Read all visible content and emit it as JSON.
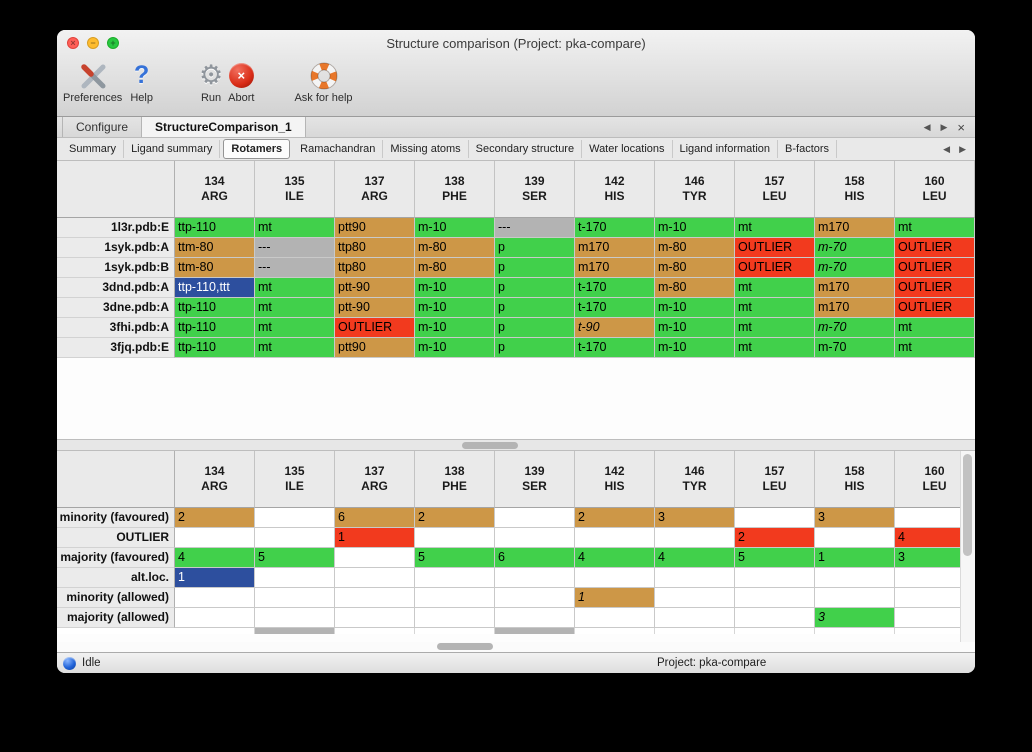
{
  "window": {
    "title": "Structure comparison (Project: pka-compare)",
    "traffic": {
      "close": "×",
      "minimize": "−",
      "zoom": "+"
    }
  },
  "toolbar": [
    {
      "label": "Preferences"
    },
    {
      "label": "Help",
      "glyph": "?"
    },
    {
      "label": "Run",
      "glyph": "⚙"
    },
    {
      "label": "Abort",
      "glyph": "×"
    },
    {
      "label": "Ask for help"
    }
  ],
  "primary_tabs": {
    "tabs": [
      {
        "label": "Configure",
        "active": false
      },
      {
        "label": "StructureComparison_1",
        "active": true
      }
    ],
    "controls": {
      "back": "◀",
      "forward": "▶",
      "close": "×"
    }
  },
  "secondary_tabs": {
    "tabs": [
      {
        "label": "Summary"
      },
      {
        "label": "Ligand summary"
      },
      {
        "label": "Rotamers",
        "active": true
      },
      {
        "label": "Ramachandran"
      },
      {
        "label": "Missing atoms"
      },
      {
        "label": "Secondary structure"
      },
      {
        "label": "Water locations"
      },
      {
        "label": "Ligand information"
      },
      {
        "label": "B-factors"
      }
    ],
    "controls": {
      "back": "◀",
      "forward": "▶"
    }
  },
  "columns": [
    {
      "num": "134",
      "res": "ARG"
    },
    {
      "num": "135",
      "res": "ILE"
    },
    {
      "num": "137",
      "res": "ARG"
    },
    {
      "num": "138",
      "res": "PHE"
    },
    {
      "num": "139",
      "res": "SER"
    },
    {
      "num": "142",
      "res": "HIS"
    },
    {
      "num": "146",
      "res": "TYR"
    },
    {
      "num": "157",
      "res": "LEU"
    },
    {
      "num": "158",
      "res": "HIS"
    },
    {
      "num": "160",
      "res": "LEU"
    }
  ],
  "colors": {
    "green": "#41d04b",
    "tan": "#cd9747",
    "red": "#f23a1e",
    "gray": "#b3b3b3",
    "blue": "#2d4f9e"
  },
  "structures_table": {
    "rows": [
      {
        "label": "1l3r.pdb:E",
        "cells": [
          {
            "t": "ttp-110",
            "c": "green"
          },
          {
            "t": "mt",
            "c": "green"
          },
          {
            "t": "ptt90",
            "c": "tan"
          },
          {
            "t": "m-10",
            "c": "green"
          },
          {
            "t": "---",
            "c": "gray"
          },
          {
            "t": "t-170",
            "c": "green"
          },
          {
            "t": "m-10",
            "c": "green"
          },
          {
            "t": "mt",
            "c": "green"
          },
          {
            "t": "m170",
            "c": "tan"
          },
          {
            "t": "mt",
            "c": "green"
          }
        ]
      },
      {
        "label": "1syk.pdb:A",
        "cells": [
          {
            "t": "ttm-80",
            "c": "tan"
          },
          {
            "t": "---",
            "c": "gray"
          },
          {
            "t": "ttp80",
            "c": "tan"
          },
          {
            "t": "m-80",
            "c": "tan"
          },
          {
            "t": "p",
            "c": "green"
          },
          {
            "t": "m170",
            "c": "tan"
          },
          {
            "t": "m-80",
            "c": "tan"
          },
          {
            "t": "OUTLIER",
            "c": "red"
          },
          {
            "t": "m-70",
            "c": "green",
            "i": true
          },
          {
            "t": "OUTLIER",
            "c": "red"
          }
        ]
      },
      {
        "label": "1syk.pdb:B",
        "cells": [
          {
            "t": "ttm-80",
            "c": "tan"
          },
          {
            "t": "---",
            "c": "gray"
          },
          {
            "t": "ttp80",
            "c": "tan"
          },
          {
            "t": "m-80",
            "c": "tan"
          },
          {
            "t": "p",
            "c": "green"
          },
          {
            "t": "m170",
            "c": "tan"
          },
          {
            "t": "m-80",
            "c": "tan"
          },
          {
            "t": "OUTLIER",
            "c": "red"
          },
          {
            "t": "m-70",
            "c": "green",
            "i": true
          },
          {
            "t": "OUTLIER",
            "c": "red"
          }
        ]
      },
      {
        "label": "3dnd.pdb:A",
        "cells": [
          {
            "t": "ttp-110,ttt",
            "c": "blue"
          },
          {
            "t": "mt",
            "c": "green"
          },
          {
            "t": "ptt-90",
            "c": "tan"
          },
          {
            "t": "m-10",
            "c": "green"
          },
          {
            "t": "p",
            "c": "green"
          },
          {
            "t": "t-170",
            "c": "green"
          },
          {
            "t": "m-80",
            "c": "tan"
          },
          {
            "t": "mt",
            "c": "green"
          },
          {
            "t": "m170",
            "c": "tan"
          },
          {
            "t": "OUTLIER",
            "c": "red"
          }
        ]
      },
      {
        "label": "3dne.pdb:A",
        "cells": [
          {
            "t": "ttp-110",
            "c": "green"
          },
          {
            "t": "mt",
            "c": "green"
          },
          {
            "t": "ptt-90",
            "c": "tan"
          },
          {
            "t": "m-10",
            "c": "green"
          },
          {
            "t": "p",
            "c": "green"
          },
          {
            "t": "t-170",
            "c": "green"
          },
          {
            "t": "m-10",
            "c": "green"
          },
          {
            "t": "mt",
            "c": "green"
          },
          {
            "t": "m170",
            "c": "tan"
          },
          {
            "t": "OUTLIER",
            "c": "red"
          }
        ]
      },
      {
        "label": "3fhi.pdb:A",
        "cells": [
          {
            "t": "ttp-110",
            "c": "green"
          },
          {
            "t": "mt",
            "c": "green"
          },
          {
            "t": "OUTLIER",
            "c": "red"
          },
          {
            "t": "m-10",
            "c": "green"
          },
          {
            "t": "p",
            "c": "green"
          },
          {
            "t": "t-90",
            "c": "tan",
            "i": true
          },
          {
            "t": "m-10",
            "c": "green"
          },
          {
            "t": "mt",
            "c": "green"
          },
          {
            "t": "m-70",
            "c": "green",
            "i": true
          },
          {
            "t": "mt",
            "c": "green"
          }
        ]
      },
      {
        "label": "3fjq.pdb:E",
        "cells": [
          {
            "t": "ttp-110",
            "c": "green"
          },
          {
            "t": "mt",
            "c": "green"
          },
          {
            "t": "ptt90",
            "c": "tan"
          },
          {
            "t": "m-10",
            "c": "green"
          },
          {
            "t": "p",
            "c": "green"
          },
          {
            "t": "t-170",
            "c": "green"
          },
          {
            "t": "m-10",
            "c": "green"
          },
          {
            "t": "mt",
            "c": "green"
          },
          {
            "t": "m-70",
            "c": "green"
          },
          {
            "t": "mt",
            "c": "green"
          }
        ]
      }
    ]
  },
  "summary_table": {
    "rows": [
      {
        "label": "minority (favoured)",
        "cells": [
          {
            "t": "2",
            "c": "tan"
          },
          null,
          {
            "t": "6",
            "c": "tan"
          },
          {
            "t": "2",
            "c": "tan"
          },
          null,
          {
            "t": "2",
            "c": "tan"
          },
          {
            "t": "3",
            "c": "tan"
          },
          null,
          {
            "t": "3",
            "c": "tan"
          },
          null
        ]
      },
      {
        "label": "OUTLIER",
        "cells": [
          null,
          null,
          {
            "t": "1",
            "c": "red"
          },
          null,
          null,
          null,
          null,
          {
            "t": "2",
            "c": "red"
          },
          null,
          {
            "t": "4",
            "c": "red"
          }
        ]
      },
      {
        "label": "majority (favoured)",
        "cells": [
          {
            "t": "4",
            "c": "green"
          },
          {
            "t": "5",
            "c": "green"
          },
          null,
          {
            "t": "5",
            "c": "green"
          },
          {
            "t": "6",
            "c": "green"
          },
          {
            "t": "4",
            "c": "green"
          },
          {
            "t": "4",
            "c": "green"
          },
          {
            "t": "5",
            "c": "green"
          },
          {
            "t": "1",
            "c": "green"
          },
          {
            "t": "3",
            "c": "green"
          }
        ]
      },
      {
        "label": "alt.loc.",
        "cells": [
          {
            "t": "1",
            "c": "blue"
          },
          null,
          null,
          null,
          null,
          null,
          null,
          null,
          null,
          null
        ]
      },
      {
        "label": "minority (allowed)",
        "cells": [
          null,
          null,
          null,
          null,
          null,
          {
            "t": "1",
            "c": "tan",
            "i": true
          },
          null,
          null,
          null,
          null
        ]
      },
      {
        "label": "majority (allowed)",
        "cells": [
          null,
          null,
          null,
          null,
          null,
          null,
          null,
          null,
          {
            "t": "3",
            "c": "green",
            "i": true
          },
          null
        ]
      }
    ],
    "partial_gray_columns": [
      1,
      4
    ]
  },
  "status_bar": {
    "left": "Idle",
    "right": "Project: pka-compare"
  }
}
